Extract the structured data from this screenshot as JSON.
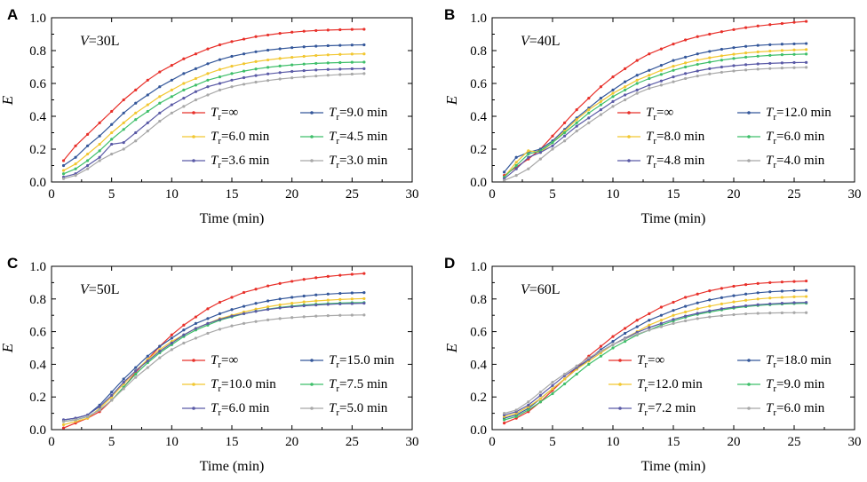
{
  "colors": {
    "red": "#e8302a",
    "navy": "#34579a",
    "yellow": "#f2c731",
    "green": "#3fbf6a",
    "purple": "#5a5aa6",
    "gray": "#a8a8a8"
  },
  "chart_data": [
    {
      "type": "line",
      "panel": "A",
      "title": "V=30L",
      "title_var": "V",
      "title_rest": "=30L",
      "xlabel": "Time (min)",
      "ylabel": "E",
      "xlim": [
        0,
        30
      ],
      "ylim": [
        0,
        1.0
      ],
      "xticks": [
        0,
        5,
        10,
        15,
        20,
        25,
        30
      ],
      "yticks": [
        0.0,
        0.2,
        0.4,
        0.6,
        0.8,
        1.0
      ],
      "x": [
        1,
        2,
        3,
        4,
        5,
        6,
        7,
        8,
        9,
        10,
        11,
        12,
        13,
        14,
        15,
        16,
        17,
        18,
        19,
        20,
        21,
        22,
        23,
        24,
        25,
        26
      ],
      "series": [
        {
          "name": "Tr=∞",
          "color_key": "red",
          "values": [
            0.13,
            0.22,
            0.29,
            0.36,
            0.43,
            0.5,
            0.56,
            0.62,
            0.67,
            0.71,
            0.75,
            0.78,
            0.81,
            0.835,
            0.855,
            0.87,
            0.885,
            0.895,
            0.905,
            0.912,
            0.918,
            0.922,
            0.925,
            0.927,
            0.929,
            0.93
          ]
        },
        {
          "name": "Tr=9.0 min",
          "color_key": "navy",
          "values": [
            0.1,
            0.15,
            0.22,
            0.28,
            0.35,
            0.42,
            0.48,
            0.53,
            0.58,
            0.62,
            0.66,
            0.69,
            0.72,
            0.745,
            0.765,
            0.78,
            0.793,
            0.803,
            0.811,
            0.818,
            0.823,
            0.827,
            0.83,
            0.832,
            0.834,
            0.835
          ]
        },
        {
          "name": "Tr=6.0 min",
          "color_key": "yellow",
          "values": [
            0.07,
            0.11,
            0.17,
            0.23,
            0.3,
            0.36,
            0.42,
            0.47,
            0.52,
            0.56,
            0.6,
            0.63,
            0.66,
            0.685,
            0.705,
            0.72,
            0.733,
            0.743,
            0.752,
            0.759,
            0.765,
            0.77,
            0.774,
            0.777,
            0.779,
            0.78
          ]
        },
        {
          "name": "Tr=4.5 min",
          "color_key": "green",
          "values": [
            0.05,
            0.08,
            0.13,
            0.19,
            0.26,
            0.32,
            0.38,
            0.43,
            0.48,
            0.52,
            0.56,
            0.59,
            0.62,
            0.64,
            0.66,
            0.675,
            0.688,
            0.698,
            0.706,
            0.713,
            0.718,
            0.722,
            0.725,
            0.727,
            0.729,
            0.73
          ]
        },
        {
          "name": "Tr=3.6 min",
          "color_key": "purple",
          "values": [
            0.03,
            0.05,
            0.1,
            0.15,
            0.23,
            0.24,
            0.3,
            0.36,
            0.42,
            0.47,
            0.51,
            0.55,
            0.58,
            0.6,
            0.62,
            0.635,
            0.648,
            0.658,
            0.666,
            0.673,
            0.678,
            0.682,
            0.685,
            0.687,
            0.689,
            0.69
          ]
        },
        {
          "name": "Tr=3.0 min",
          "color_key": "gray",
          "values": [
            0.02,
            0.04,
            0.08,
            0.13,
            0.17,
            0.2,
            0.25,
            0.31,
            0.37,
            0.42,
            0.46,
            0.5,
            0.53,
            0.56,
            0.58,
            0.595,
            0.608,
            0.618,
            0.627,
            0.634,
            0.64,
            0.645,
            0.65,
            0.654,
            0.657,
            0.66
          ]
        }
      ]
    },
    {
      "type": "line",
      "panel": "B",
      "title": "V=40L",
      "title_var": "V",
      "title_rest": "=40L",
      "xlabel": "Time (min)",
      "ylabel": "E",
      "xlim": [
        0,
        30
      ],
      "ylim": [
        0,
        1.0
      ],
      "xticks": [
        0,
        5,
        10,
        15,
        20,
        25,
        30
      ],
      "yticks": [
        0.0,
        0.2,
        0.4,
        0.6,
        0.8,
        1.0
      ],
      "x": [
        1,
        2,
        3,
        4,
        5,
        6,
        7,
        8,
        9,
        10,
        11,
        12,
        13,
        14,
        15,
        16,
        17,
        18,
        19,
        20,
        21,
        22,
        23,
        24,
        25,
        26
      ],
      "series": [
        {
          "name": "Tr=∞",
          "color_key": "red",
          "values": [
            0.04,
            0.09,
            0.14,
            0.2,
            0.28,
            0.36,
            0.44,
            0.51,
            0.58,
            0.64,
            0.69,
            0.74,
            0.78,
            0.81,
            0.84,
            0.865,
            0.885,
            0.9,
            0.915,
            0.928,
            0.94,
            0.95,
            0.958,
            0.965,
            0.972,
            0.978
          ]
        },
        {
          "name": "Tr=12.0 min",
          "color_key": "navy",
          "values": [
            0.06,
            0.15,
            0.18,
            0.2,
            0.25,
            0.32,
            0.39,
            0.45,
            0.51,
            0.56,
            0.61,
            0.65,
            0.68,
            0.71,
            0.74,
            0.76,
            0.78,
            0.795,
            0.808,
            0.818,
            0.826,
            0.832,
            0.836,
            0.839,
            0.841,
            0.843
          ]
        },
        {
          "name": "Tr=8.0 min",
          "color_key": "yellow",
          "values": [
            0.03,
            0.12,
            0.19,
            0.18,
            0.24,
            0.31,
            0.38,
            0.44,
            0.49,
            0.54,
            0.58,
            0.62,
            0.65,
            0.68,
            0.705,
            0.725,
            0.742,
            0.756,
            0.768,
            0.778,
            0.786,
            0.792,
            0.797,
            0.801,
            0.804,
            0.806
          ]
        },
        {
          "name": "Tr=6.0 min",
          "color_key": "green",
          "values": [
            0.03,
            0.1,
            0.17,
            0.19,
            0.24,
            0.3,
            0.36,
            0.42,
            0.47,
            0.52,
            0.56,
            0.6,
            0.63,
            0.655,
            0.68,
            0.7,
            0.716,
            0.73,
            0.742,
            0.752,
            0.76,
            0.766,
            0.771,
            0.775,
            0.777,
            0.779
          ]
        },
        {
          "name": "Tr=4.8 min",
          "color_key": "purple",
          "values": [
            0.02,
            0.08,
            0.15,
            0.18,
            0.22,
            0.28,
            0.34,
            0.39,
            0.44,
            0.49,
            0.53,
            0.56,
            0.59,
            0.615,
            0.64,
            0.66,
            0.676,
            0.69,
            0.7,
            0.708,
            0.714,
            0.719,
            0.722,
            0.725,
            0.727,
            0.728
          ]
        },
        {
          "name": "Tr=4.0 min",
          "color_key": "gray",
          "values": [
            0.01,
            0.04,
            0.08,
            0.14,
            0.2,
            0.25,
            0.31,
            0.36,
            0.41,
            0.46,
            0.5,
            0.54,
            0.57,
            0.59,
            0.61,
            0.63,
            0.645,
            0.658,
            0.668,
            0.676,
            0.682,
            0.687,
            0.691,
            0.694,
            0.696,
            0.698
          ]
        }
      ]
    },
    {
      "type": "line",
      "panel": "C",
      "title": "V=50L",
      "title_var": "V",
      "title_rest": "=50L",
      "xlabel": "Time (min)",
      "ylabel": "E",
      "xlim": [
        0,
        30
      ],
      "ylim": [
        0,
        1.0
      ],
      "xticks": [
        0,
        5,
        10,
        15,
        20,
        25,
        30
      ],
      "yticks": [
        0.0,
        0.2,
        0.4,
        0.6,
        0.8,
        1.0
      ],
      "x": [
        1,
        2,
        3,
        4,
        5,
        6,
        7,
        8,
        9,
        10,
        11,
        12,
        13,
        14,
        15,
        16,
        17,
        18,
        19,
        20,
        21,
        22,
        23,
        24,
        25,
        26
      ],
      "series": [
        {
          "name": "Tr=∞",
          "color_key": "red",
          "values": [
            0.01,
            0.04,
            0.07,
            0.11,
            0.18,
            0.26,
            0.35,
            0.43,
            0.51,
            0.58,
            0.64,
            0.69,
            0.74,
            0.78,
            0.81,
            0.84,
            0.86,
            0.88,
            0.895,
            0.908,
            0.92,
            0.93,
            0.938,
            0.945,
            0.951,
            0.956
          ]
        },
        {
          "name": "Tr=15.0 min",
          "color_key": "navy",
          "values": [
            0.06,
            0.07,
            0.09,
            0.15,
            0.23,
            0.31,
            0.38,
            0.45,
            0.51,
            0.56,
            0.61,
            0.65,
            0.68,
            0.71,
            0.735,
            0.755,
            0.773,
            0.788,
            0.8,
            0.81,
            0.818,
            0.825,
            0.83,
            0.834,
            0.837,
            0.839
          ]
        },
        {
          "name": "Tr=10.0 min",
          "color_key": "yellow",
          "values": [
            0.03,
            0.05,
            0.07,
            0.13,
            0.2,
            0.28,
            0.36,
            0.43,
            0.49,
            0.54,
            0.58,
            0.62,
            0.65,
            0.68,
            0.7,
            0.72,
            0.738,
            0.752,
            0.764,
            0.774,
            0.782,
            0.788,
            0.793,
            0.797,
            0.8,
            0.802
          ]
        },
        {
          "name": "Tr=7.5 min",
          "color_key": "green",
          "values": [
            0.05,
            0.06,
            0.08,
            0.12,
            0.18,
            0.26,
            0.34,
            0.41,
            0.47,
            0.52,
            0.57,
            0.61,
            0.64,
            0.67,
            0.69,
            0.71,
            0.725,
            0.738,
            0.748,
            0.756,
            0.763,
            0.768,
            0.772,
            0.775,
            0.777,
            0.778
          ]
        },
        {
          "name": "Tr=6.0 min",
          "color_key": "purple",
          "values": [
            0.06,
            0.07,
            0.09,
            0.14,
            0.21,
            0.29,
            0.36,
            0.42,
            0.48,
            0.53,
            0.58,
            0.62,
            0.65,
            0.675,
            0.695,
            0.71,
            0.724,
            0.736,
            0.745,
            0.752,
            0.758,
            0.763,
            0.767,
            0.77,
            0.772,
            0.774
          ]
        },
        {
          "name": "Tr=5.0 min",
          "color_key": "gray",
          "values": [
            0.05,
            0.06,
            0.08,
            0.12,
            0.18,
            0.25,
            0.32,
            0.38,
            0.44,
            0.49,
            0.53,
            0.56,
            0.59,
            0.615,
            0.635,
            0.65,
            0.662,
            0.672,
            0.68,
            0.686,
            0.691,
            0.695,
            0.698,
            0.7,
            0.701,
            0.702
          ]
        }
      ]
    },
    {
      "type": "line",
      "panel": "D",
      "title": "V=60L",
      "title_var": "V",
      "title_rest": "=60L",
      "xlabel": "Time (min)",
      "ylabel": "E",
      "xlim": [
        0,
        30
      ],
      "ylim": [
        0,
        1.0
      ],
      "xticks": [
        0,
        5,
        10,
        15,
        20,
        25,
        30
      ],
      "yticks": [
        0.0,
        0.2,
        0.4,
        0.6,
        0.8,
        1.0
      ],
      "x": [
        1,
        2,
        3,
        4,
        5,
        6,
        7,
        8,
        9,
        10,
        11,
        12,
        13,
        14,
        15,
        16,
        17,
        18,
        19,
        20,
        21,
        22,
        23,
        24,
        25,
        26
      ],
      "series": [
        {
          "name": "Tr=∞",
          "color_key": "red",
          "values": [
            0.04,
            0.07,
            0.11,
            0.17,
            0.24,
            0.31,
            0.38,
            0.45,
            0.51,
            0.57,
            0.62,
            0.67,
            0.71,
            0.75,
            0.78,
            0.81,
            0.83,
            0.85,
            0.865,
            0.878,
            0.888,
            0.895,
            0.9,
            0.904,
            0.907,
            0.91
          ]
        },
        {
          "name": "Tr=18.0 min",
          "color_key": "navy",
          "values": [
            0.07,
            0.09,
            0.13,
            0.19,
            0.25,
            0.31,
            0.37,
            0.43,
            0.49,
            0.54,
            0.59,
            0.63,
            0.67,
            0.7,
            0.73,
            0.755,
            0.776,
            0.794,
            0.808,
            0.82,
            0.83,
            0.838,
            0.844,
            0.848,
            0.851,
            0.853
          ]
        },
        {
          "name": "Tr=12.0 min",
          "color_key": "yellow",
          "values": [
            0.08,
            0.1,
            0.14,
            0.19,
            0.25,
            0.31,
            0.37,
            0.42,
            0.47,
            0.52,
            0.56,
            0.6,
            0.64,
            0.67,
            0.7,
            0.72,
            0.74,
            0.756,
            0.77,
            0.782,
            0.792,
            0.8,
            0.806,
            0.81,
            0.813,
            0.815
          ]
        },
        {
          "name": "Tr=9.0 min",
          "color_key": "green",
          "values": [
            0.06,
            0.08,
            0.12,
            0.17,
            0.22,
            0.28,
            0.34,
            0.4,
            0.45,
            0.5,
            0.54,
            0.58,
            0.61,
            0.64,
            0.665,
            0.688,
            0.706,
            0.72,
            0.733,
            0.744,
            0.753,
            0.76,
            0.765,
            0.769,
            0.772,
            0.774
          ]
        },
        {
          "name": "Tr=7.2 min",
          "color_key": "purple",
          "values": [
            0.09,
            0.11,
            0.15,
            0.21,
            0.27,
            0.33,
            0.38,
            0.43,
            0.48,
            0.52,
            0.56,
            0.595,
            0.625,
            0.65,
            0.675,
            0.695,
            0.712,
            0.727,
            0.74,
            0.75,
            0.758,
            0.765,
            0.77,
            0.774,
            0.777,
            0.779
          ]
        },
        {
          "name": "Tr=6.0 min",
          "color_key": "gray",
          "values": [
            0.1,
            0.12,
            0.17,
            0.23,
            0.29,
            0.34,
            0.39,
            0.44,
            0.48,
            0.52,
            0.555,
            0.585,
            0.61,
            0.63,
            0.65,
            0.666,
            0.68,
            0.69,
            0.698,
            0.704,
            0.709,
            0.712,
            0.714,
            0.715,
            0.716,
            0.716
          ]
        }
      ]
    }
  ]
}
